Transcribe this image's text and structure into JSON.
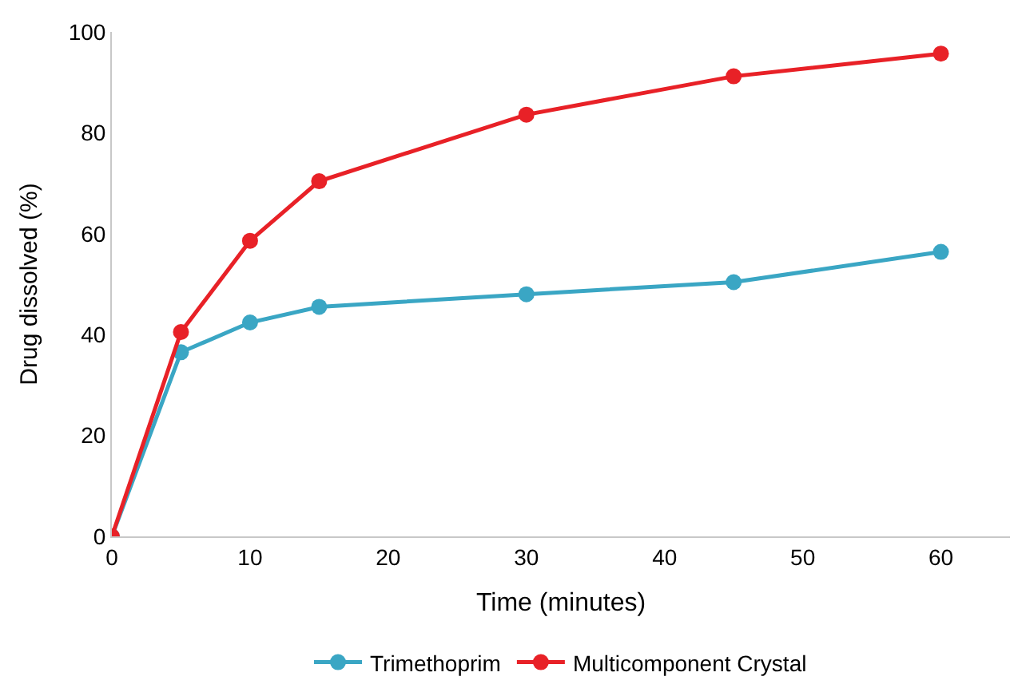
{
  "chart_data": {
    "type": "line",
    "xlabel": "Time (minutes)",
    "ylabel": "Drug dissolved (%)",
    "x": [
      0,
      5,
      10,
      15,
      30,
      45,
      60
    ],
    "series": [
      {
        "name": "Trimethoprim",
        "color": "#3aa6c4",
        "values": [
          0,
          36.5,
          42.4,
          45.5,
          48,
          50.4,
          56.4
        ]
      },
      {
        "name": "Multicomponent Crystal",
        "color": "#e82127",
        "values": [
          0,
          40.5,
          58.6,
          70.4,
          83.6,
          91.2,
          95.7
        ]
      }
    ],
    "xlim": [
      0,
      65
    ],
    "xticks": [
      0,
      10,
      20,
      30,
      40,
      50,
      60
    ],
    "ylim": [
      0,
      100
    ],
    "yticks": [
      0,
      20,
      40,
      60,
      80,
      100
    ],
    "legend": "bottom",
    "marker": "circle",
    "line_style": "solid"
  }
}
